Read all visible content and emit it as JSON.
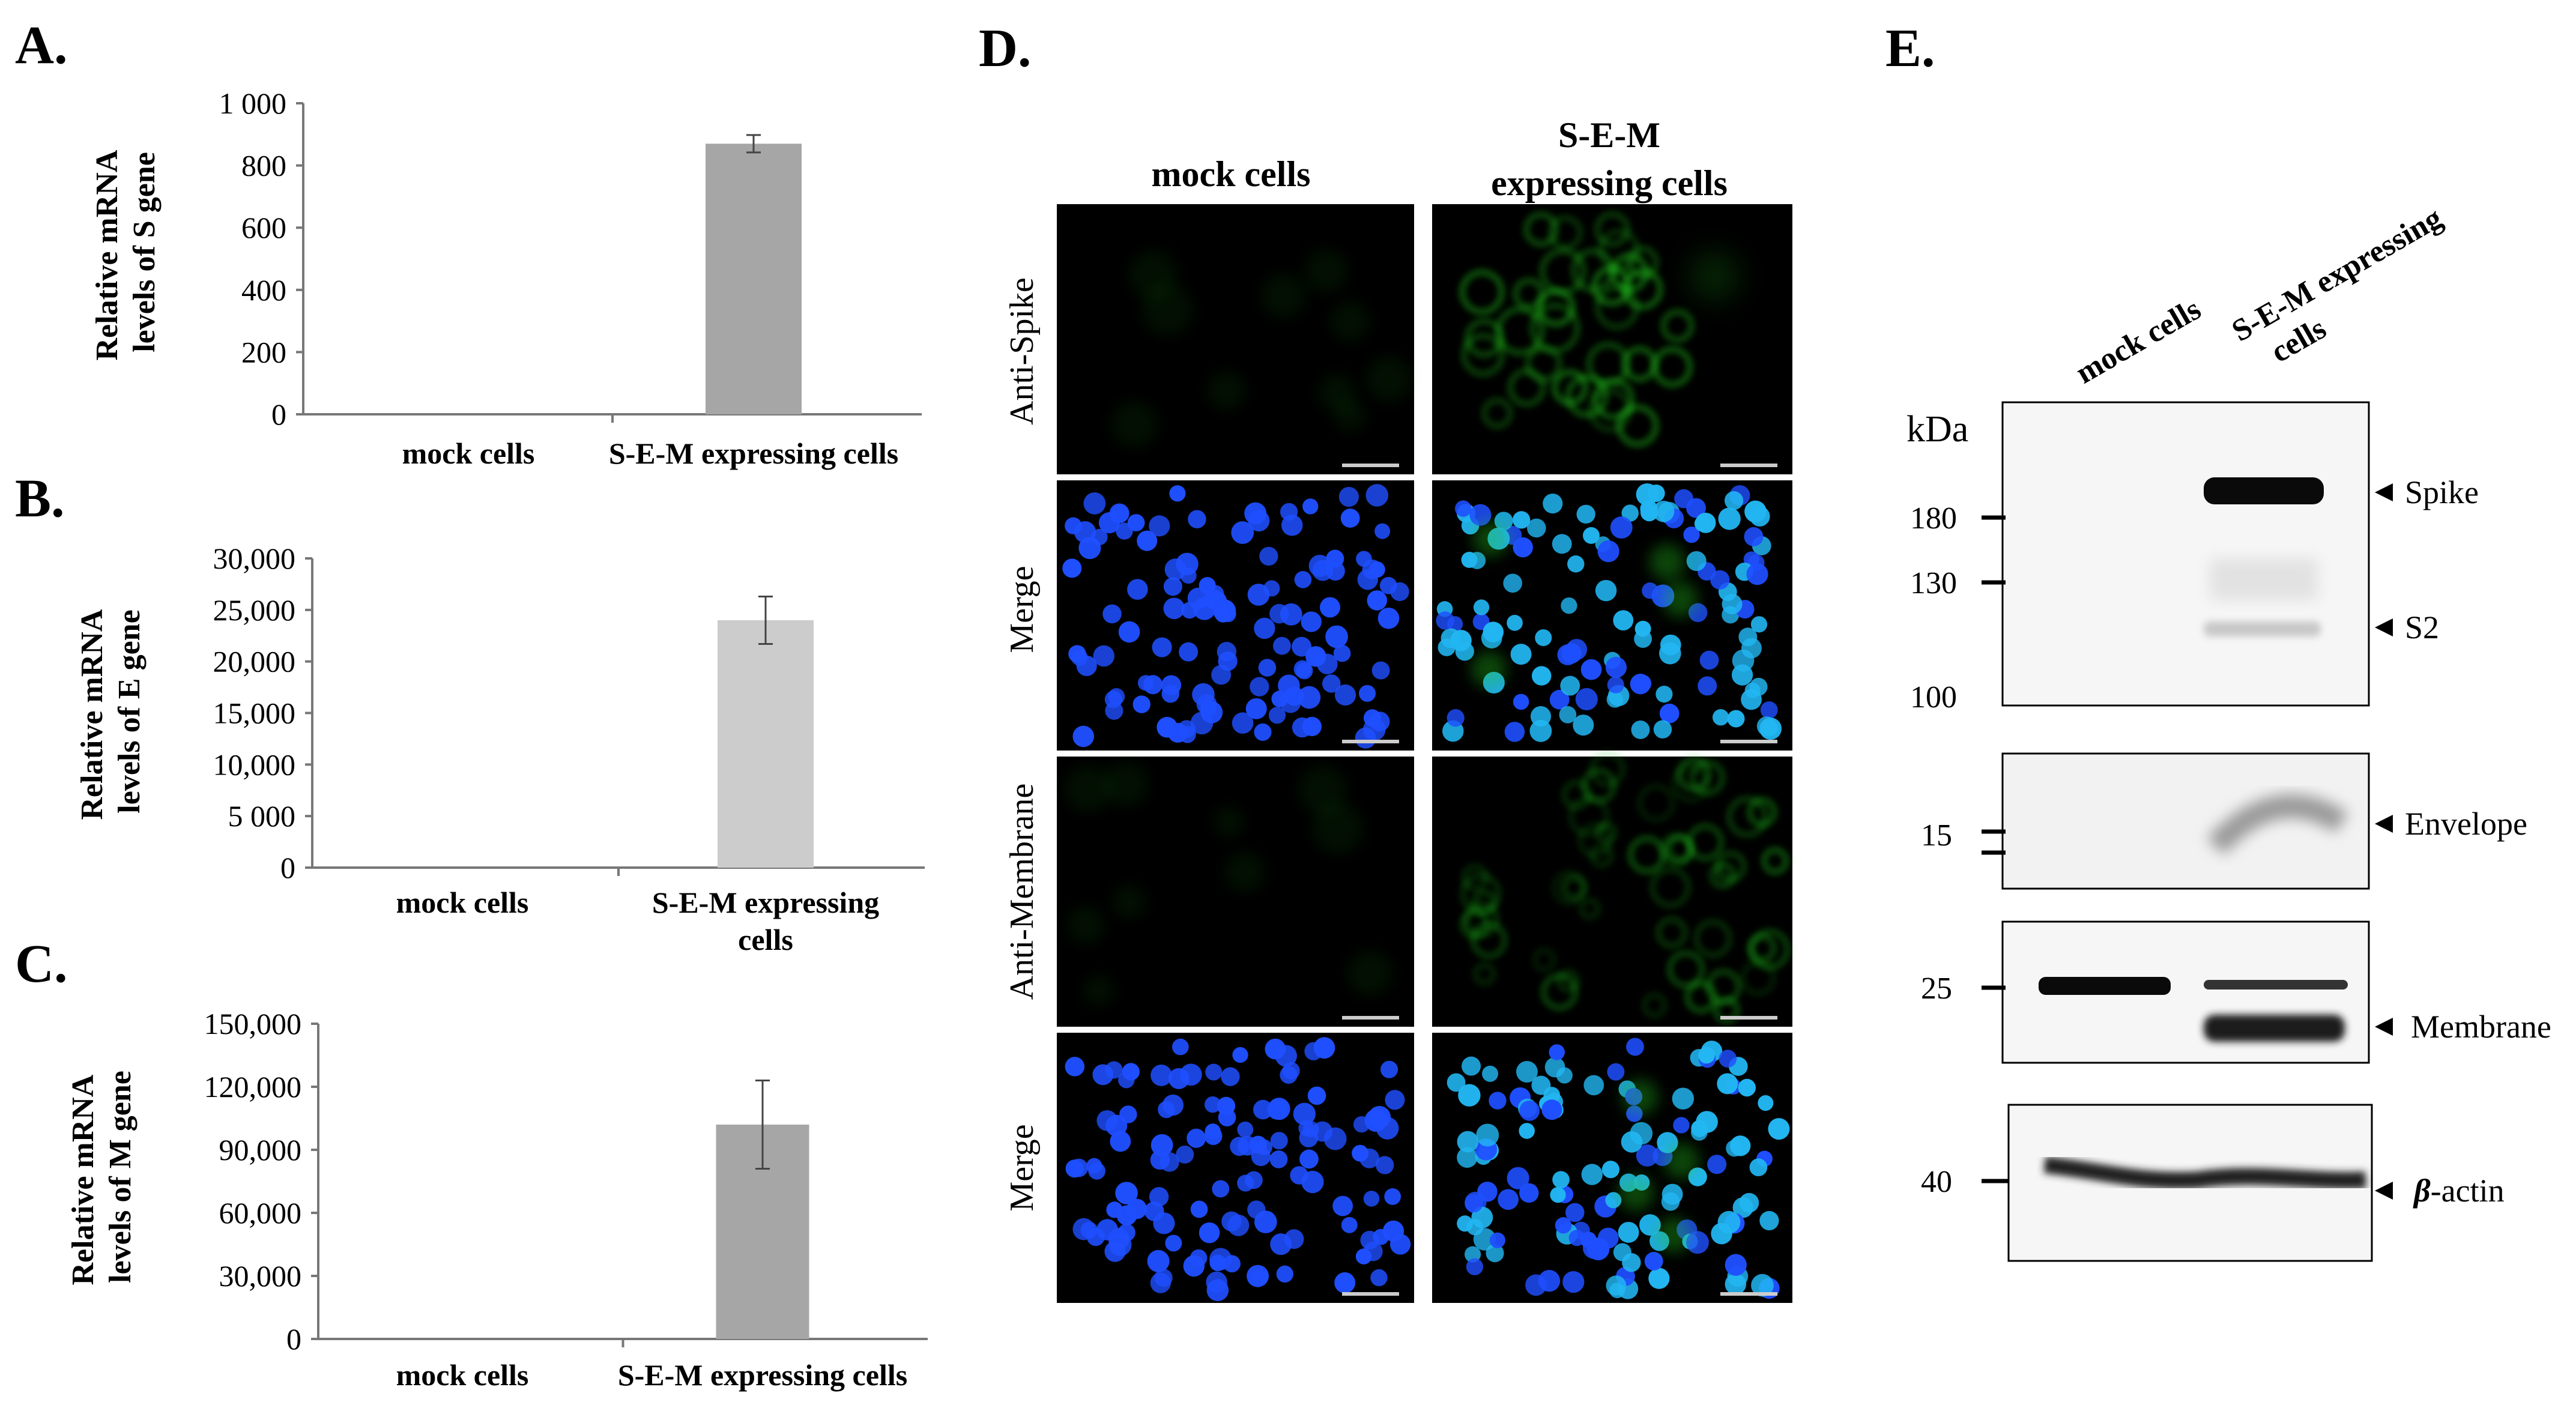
{
  "panel_labels": {
    "a": "A.",
    "b": "B.",
    "c": "C.",
    "d": "D.",
    "e": "E."
  },
  "colors": {
    "bar_a": "#a6a6a6",
    "bar_b": "#cccccc",
    "bar_c": "#a6a6a6",
    "gfp": "#22c41e",
    "dapi": "#1f4fff",
    "dapi_bright": "#22b6f2",
    "blot_bg": "#f6f6f6",
    "band": "#0a0a0a"
  },
  "chart_data": [
    {
      "type": "bar",
      "title": "",
      "ylabel": "Relative mRNA levels of S gene",
      "xlabel": "",
      "categories": [
        "mock cells",
        "S-E-M expressing cells"
      ],
      "values": [
        0,
        870
      ],
      "errors": [
        0,
        28
      ],
      "ylim": [
        0,
        1000
      ],
      "yticks": [
        0,
        200,
        400,
        600,
        800,
        1000
      ],
      "ytick_labels": [
        "0",
        "200",
        "400",
        "600",
        "800",
        "1 000"
      ],
      "grid": false
    },
    {
      "type": "bar",
      "title": "",
      "ylabel": "Relative mRNA levels of E gene",
      "xlabel": "",
      "categories": [
        "mock cells",
        "S-E-M expressing cells"
      ],
      "values": [
        0,
        24000
      ],
      "errors": [
        0,
        2300
      ],
      "ylim": [
        0,
        30000
      ],
      "yticks": [
        0,
        5000,
        10000,
        15000,
        20000,
        25000,
        30000
      ],
      "ytick_labels": [
        "0",
        "5 000",
        "10,000",
        "15,000",
        "20,000",
        "25,000",
        "30,000"
      ],
      "grid": false
    },
    {
      "type": "bar",
      "title": "",
      "ylabel": "Relative mRNA levels of M gene",
      "xlabel": "",
      "categories": [
        "mock cells",
        "S-E-M expressing cells"
      ],
      "values": [
        0,
        102000
      ],
      "errors": [
        0,
        21000
      ],
      "ylim": [
        0,
        150000
      ],
      "yticks": [
        0,
        30000,
        60000,
        90000,
        120000,
        150000
      ],
      "ytick_labels": [
        "0",
        "30,000",
        "60,000",
        "90,000",
        "120,000",
        "150,000"
      ],
      "grid": false
    }
  ],
  "panel_d": {
    "col_mock": "mock cells",
    "col_sem_line1": "S-E-M",
    "col_sem_line2": "expressing cells",
    "row_labels": [
      "Anti-Spike",
      "Merge",
      "Anti-Membrane",
      "Merge"
    ]
  },
  "panel_e": {
    "lane_mock": "mock cells",
    "lane_sem_line1": "S-E-M expressing",
    "lane_sem_line2": "cells",
    "kda_label": "kDa",
    "markers": {
      "m180": "180",
      "m130": "130",
      "m100": "100",
      "m15": "15",
      "m25": "25",
      "m40": "40"
    },
    "bands": {
      "spike": "Spike",
      "s2": "S2",
      "envelope": "Envelope",
      "membrane": "Membrane",
      "actin_prefix": "β",
      "actin_suffix": "-actin"
    }
  }
}
